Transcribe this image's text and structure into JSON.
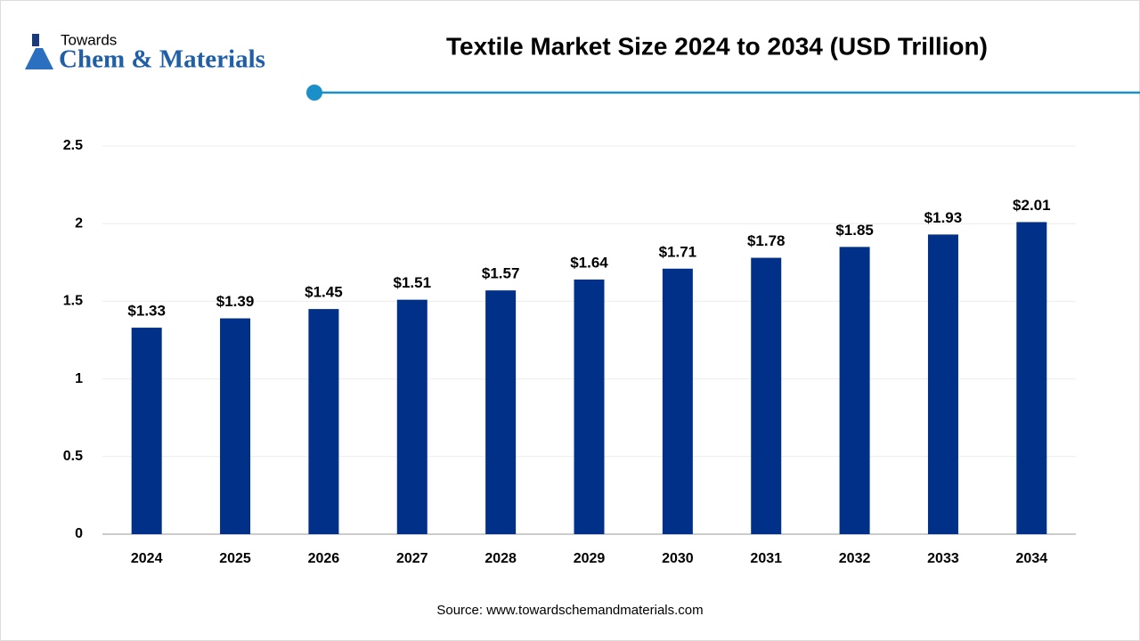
{
  "logo": {
    "top": "Towards",
    "main": "Chem & Materials"
  },
  "chart_data": {
    "type": "bar",
    "title": "Textile Market Size 2024 to 2034 (USD Trillion)",
    "source": "Source: www.towardschemandmaterials.com",
    "categories": [
      "2024",
      "2025",
      "2026",
      "2027",
      "2028",
      "2029",
      "2030",
      "2031",
      "2032",
      "2033",
      "2034"
    ],
    "values": [
      1.33,
      1.39,
      1.45,
      1.51,
      1.57,
      1.64,
      1.71,
      1.78,
      1.85,
      1.93,
      2.01
    ],
    "value_labels": [
      "$1.33",
      "$1.39",
      "$1.45",
      "$1.51",
      "$1.57",
      "$1.64",
      "$1.71",
      "$1.78",
      "$1.85",
      "$1.93",
      "$2.01"
    ],
    "color": "#003087",
    "ylim": [
      0,
      2.5
    ],
    "yticks": [
      0,
      0.5,
      1,
      1.5,
      2,
      2.5
    ],
    "grid": true
  }
}
